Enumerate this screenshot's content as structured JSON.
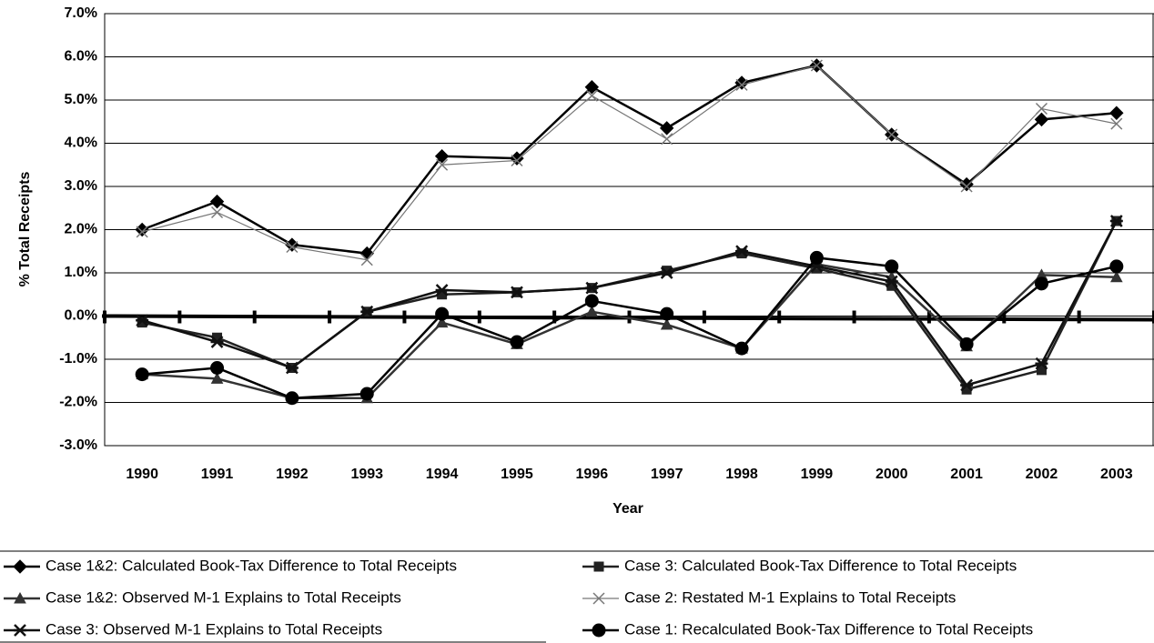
{
  "chart_data": {
    "type": "line",
    "x_label": "Year",
    "y_label": "% Total Receipts",
    "categories": [
      "1990",
      "1991",
      "1992",
      "1993",
      "1994",
      "1995",
      "1996",
      "1997",
      "1998",
      "1999",
      "2000",
      "2001",
      "2002",
      "2003"
    ],
    "ylim": [
      -3,
      7
    ],
    "yticks": [
      {
        "value": -3,
        "label": "-3.0%"
      },
      {
        "value": -2,
        "label": "-2.0%"
      },
      {
        "value": -1,
        "label": "-1.0%"
      },
      {
        "value": 0,
        "label": "0.0%"
      },
      {
        "value": 1,
        "label": "1.0%"
      },
      {
        "value": 2,
        "label": "2.0%"
      },
      {
        "value": 3,
        "label": "3.0%"
      },
      {
        "value": 4,
        "label": "4.0%"
      },
      {
        "value": 5,
        "label": "5.0%"
      },
      {
        "value": 6,
        "label": "6.0%"
      },
      {
        "value": 7,
        "label": "7.0%"
      }
    ],
    "grid": true,
    "legend": "bottom",
    "series": [
      {
        "name": "Case 1&2: Calculated Book-Tax Difference to Total Receipts",
        "color": "#000000",
        "marker": "diamond",
        "values": [
          2.0,
          2.65,
          1.65,
          1.45,
          3.7,
          3.65,
          5.3,
          4.35,
          5.4,
          5.8,
          4.2,
          3.05,
          4.55,
          4.7
        ]
      },
      {
        "name": "Case 3: Calculated Book-Tax Difference to Total Receipts",
        "color": "#222222",
        "marker": "square",
        "values": [
          -0.15,
          -0.5,
          -1.2,
          0.1,
          0.5,
          0.55,
          0.65,
          1.05,
          1.45,
          1.1,
          0.7,
          -1.7,
          -1.25,
          2.2
        ]
      },
      {
        "name": "Case 1&2: Observed M-1 Explains to Total Receipts",
        "color": "#333333",
        "marker": "triangle",
        "values": [
          -1.35,
          -1.45,
          -1.9,
          -1.9,
          -0.15,
          -0.65,
          0.1,
          -0.2,
          -0.75,
          1.2,
          0.9,
          -0.7,
          0.95,
          0.9
        ]
      },
      {
        "name": "Case 2: Restated M-1 Explains to Total Receipts",
        "color": "#777777",
        "marker": "x",
        "values": [
          1.95,
          2.4,
          1.6,
          1.3,
          3.5,
          3.6,
          5.1,
          4.1,
          5.35,
          5.8,
          4.2,
          3.0,
          4.8,
          4.45
        ]
      },
      {
        "name": "Case 3: Observed M-1 Explains to Total Receipts",
        "color": "#111111",
        "marker": "asterisk",
        "values": [
          -0.1,
          -0.6,
          -1.2,
          0.1,
          0.6,
          0.55,
          0.65,
          1.0,
          1.5,
          1.15,
          0.8,
          -1.6,
          -1.1,
          2.2
        ]
      },
      {
        "name": "Case 1: Recalculated Book-Tax Difference to Total Receipts",
        "color": "#000000",
        "marker": "circle",
        "values": [
          -1.35,
          -1.2,
          -1.9,
          -1.8,
          0.05,
          -0.6,
          0.35,
          0.05,
          -0.75,
          1.35,
          1.15,
          -0.65,
          0.75,
          1.15
        ]
      }
    ]
  }
}
